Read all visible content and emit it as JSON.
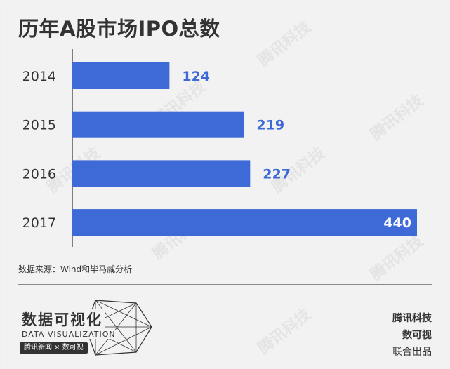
{
  "title": "历年A股市场IPO总数",
  "source": "数据来源：Wind和毕马威分析",
  "logo": {
    "main": "数据可视化",
    "sub": "DATA VISUALIZATION",
    "band": "腾讯新闻 × 数可视"
  },
  "credits": {
    "line1": "腾讯科技",
    "line2": "数可视",
    "line3": "联合出品"
  },
  "watermark": "腾讯科技",
  "colors": {
    "bar": "#3d6ad6",
    "label": "#3d6ad6",
    "label_inside": "#ffffff"
  },
  "chart_data": {
    "type": "bar",
    "orientation": "horizontal",
    "categories": [
      "2014",
      "2015",
      "2016",
      "2017"
    ],
    "values": [
      124,
      219,
      227,
      440
    ],
    "xlim": [
      0,
      440
    ],
    "grid": false
  }
}
